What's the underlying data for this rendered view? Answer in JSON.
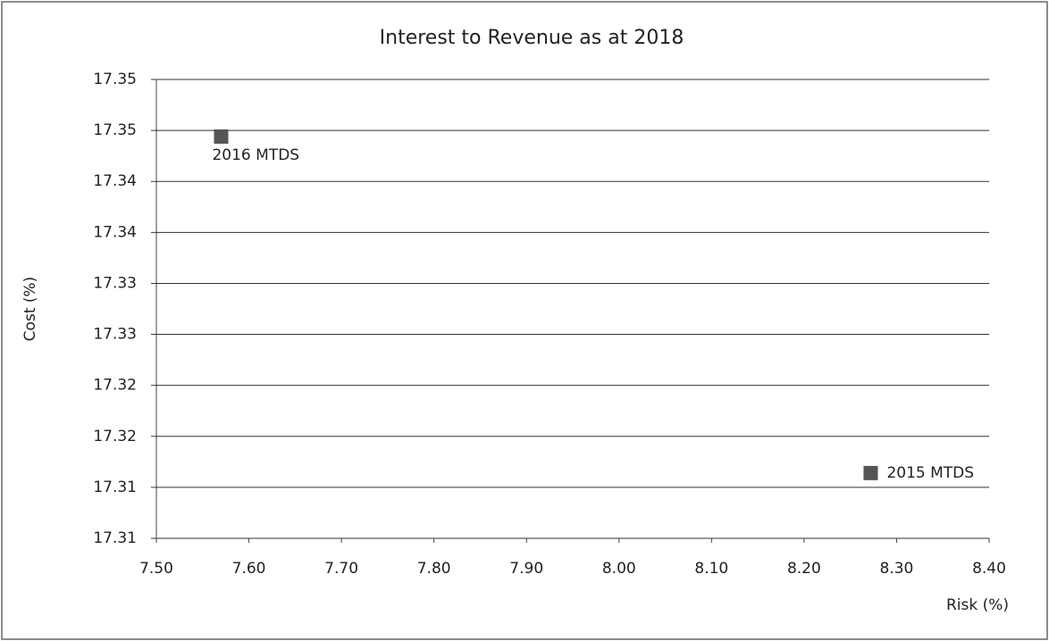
{
  "chart_data": {
    "type": "scatter",
    "title": "Interest to Revenue as at 2018",
    "x_label": "Risk (%)",
    "y_label": "Cost (%)",
    "series": [
      {
        "name": "MTDS",
        "color": "#555555",
        "x": [
          7.57,
          8.272
        ],
        "values": [
          17.3444,
          17.3114
        ],
        "labels": [
          "2016 MTDS",
          "2015 MTDS"
        ]
      }
    ],
    "xlim": [
      7.5,
      8.4
    ],
    "xticks": [
      {
        "value": 7.5,
        "label": "7.50"
      },
      {
        "value": 7.6,
        "label": "7.60"
      },
      {
        "value": 7.7,
        "label": "7.70"
      },
      {
        "value": 7.8,
        "label": "7.80"
      },
      {
        "value": 7.9,
        "label": "7.90"
      },
      {
        "value": 8.0,
        "label": "8.00"
      },
      {
        "value": 8.1,
        "label": "8.10"
      },
      {
        "value": 8.2,
        "label": "8.20"
      },
      {
        "value": 8.3,
        "label": "8.30"
      },
      {
        "value": 8.4,
        "label": "8.40"
      }
    ],
    "ylim": [
      17.305,
      17.35
    ],
    "yticks": [
      {
        "value": 17.305,
        "label": "17.31"
      },
      {
        "value": 17.31,
        "label": "17.31"
      },
      {
        "value": 17.315,
        "label": "17.32"
      },
      {
        "value": 17.32,
        "label": "17.32"
      },
      {
        "value": 17.325,
        "label": "17.33"
      },
      {
        "value": 17.33,
        "label": "17.33"
      },
      {
        "value": 17.335,
        "label": "17.34"
      },
      {
        "value": 17.34,
        "label": "17.34"
      },
      {
        "value": 17.345,
        "label": "17.35"
      },
      {
        "value": 17.35,
        "label": "17.35"
      }
    ],
    "grid": true
  }
}
